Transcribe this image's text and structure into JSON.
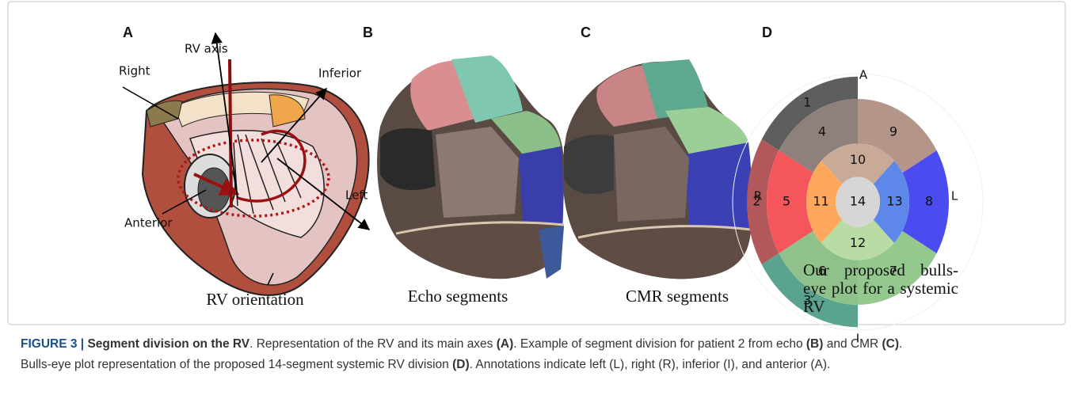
{
  "panel_a": {
    "letter": "A",
    "labels": [
      "RV axis",
      "Right",
      "Inferior",
      "Left",
      "Anterior"
    ],
    "caption": "RV orientation"
  },
  "panel_b": {
    "letter": "B",
    "caption": "Echo segments"
  },
  "panel_c": {
    "letter": "C",
    "caption": "CMR segments"
  },
  "panel_d": {
    "letter": "D",
    "directions": {
      "anterior": "A",
      "right": "R",
      "left": "L",
      "inferior": "I"
    },
    "segments": [
      {
        "label": "1",
        "color": "#5e5e5e"
      },
      {
        "label": "2",
        "color": "#b3585a"
      },
      {
        "label": "3",
        "color": "#5aa38f"
      },
      {
        "label": "4",
        "color": "#8e807a"
      },
      {
        "label": "5",
        "color": "#f4565c"
      },
      {
        "label": "6",
        "color": "#8fc28a"
      },
      {
        "label": "7",
        "color": "#93c98d"
      },
      {
        "label": "8",
        "color": "#4b4cf0"
      },
      {
        "label": "9",
        "color": "#b39689"
      },
      {
        "label": "10",
        "color": "#c9aa96"
      },
      {
        "label": "11",
        "color": "#ffa75c"
      },
      {
        "label": "12",
        "color": "#b8dca3"
      },
      {
        "label": "13",
        "color": "#5d87e8"
      },
      {
        "label": "14",
        "color": "#d6d6d6"
      }
    ],
    "caption": "Our proposed bulls-eye plot for a systemic RV"
  },
  "caption": {
    "lines": [
      [
        {
          "text": "FIGURE 3 | ",
          "bold": true
        },
        {
          "text": "Segment division on the RV",
          "bold": true
        },
        {
          "text": ". Representation of the RV and its main axes ",
          "bold": false
        },
        {
          "text": "(A)",
          "bold": true
        },
        {
          "text": ". Example of segment division for patient 2 from echo ",
          "bold": false
        },
        {
          "text": "(B)",
          "bold": true
        },
        {
          "text": " and CMR ",
          "bold": false
        },
        {
          "text": "(C)",
          "bold": true
        },
        {
          "text": ".",
          "bold": false
        }
      ],
      [
        {
          "text": "Bulls-eye plot representation of the proposed 14-segment systemic RV division ",
          "bold": false
        },
        {
          "text": "(D)",
          "bold": true
        },
        {
          "text": ". Annotations indicate left (L), right (R), inferior (I), and anterior (A).",
          "bold": false
        }
      ]
    ]
  }
}
